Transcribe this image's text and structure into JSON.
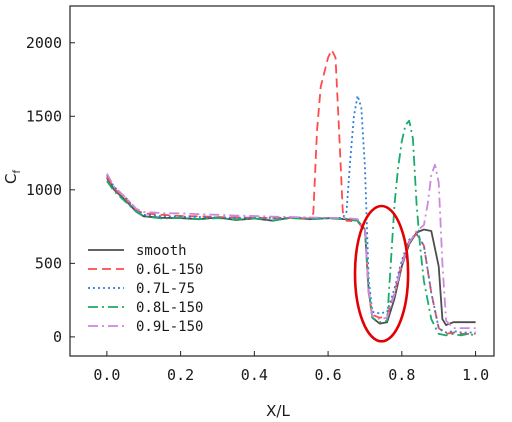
{
  "chart_data": {
    "type": "line",
    "xlabel": "X/L",
    "ylabel": "C",
    "ylabel_subscript": "f",
    "xlim": [
      -0.1,
      1.05
    ],
    "ylim": [
      -130,
      2250
    ],
    "x_ticks": [
      0.0,
      0.2,
      0.4,
      0.6,
      0.8,
      1.0
    ],
    "x_tick_labels": [
      "0.0",
      "0.2",
      "0.4",
      "0.6",
      "0.8",
      "1.0"
    ],
    "y_ticks": [
      0,
      500,
      1000,
      1500,
      2000
    ],
    "y_tick_labels": [
      "0",
      "500",
      "1000",
      "1500",
      "2000"
    ],
    "grid": false,
    "legend_position": "bottom-left",
    "series": [
      {
        "name": "smooth",
        "color": "#4d4d4d",
        "dash": "solid",
        "points": [
          [
            0.0,
            1080
          ],
          [
            0.02,
            1000
          ],
          [
            0.05,
            930
          ],
          [
            0.08,
            850
          ],
          [
            0.1,
            820
          ],
          [
            0.15,
            810
          ],
          [
            0.2,
            808
          ],
          [
            0.25,
            800
          ],
          [
            0.3,
            812
          ],
          [
            0.35,
            795
          ],
          [
            0.4,
            805
          ],
          [
            0.45,
            790
          ],
          [
            0.5,
            812
          ],
          [
            0.55,
            800
          ],
          [
            0.6,
            808
          ],
          [
            0.65,
            800
          ],
          [
            0.68,
            790
          ],
          [
            0.7,
            730
          ],
          [
            0.71,
            320
          ],
          [
            0.72,
            130
          ],
          [
            0.74,
            90
          ],
          [
            0.76,
            100
          ],
          [
            0.78,
            260
          ],
          [
            0.8,
            480
          ],
          [
            0.82,
            630
          ],
          [
            0.84,
            710
          ],
          [
            0.86,
            730
          ],
          [
            0.88,
            720
          ],
          [
            0.9,
            480
          ],
          [
            0.91,
            120
          ],
          [
            0.92,
            80
          ],
          [
            0.94,
            100
          ],
          [
            0.96,
            100
          ],
          [
            0.98,
            100
          ],
          [
            1.0,
            100
          ]
        ]
      },
      {
        "name": "0.6L-150",
        "color": "#ff4b4b",
        "dash": "9,5",
        "points": [
          [
            0.0,
            1090
          ],
          [
            0.02,
            1010
          ],
          [
            0.05,
            940
          ],
          [
            0.08,
            860
          ],
          [
            0.1,
            840
          ],
          [
            0.15,
            830
          ],
          [
            0.2,
            822
          ],
          [
            0.25,
            820
          ],
          [
            0.3,
            815
          ],
          [
            0.35,
            812
          ],
          [
            0.4,
            810
          ],
          [
            0.45,
            808
          ],
          [
            0.5,
            810
          ],
          [
            0.55,
            805
          ],
          [
            0.56,
            840
          ],
          [
            0.57,
            1400
          ],
          [
            0.58,
            1700
          ],
          [
            0.6,
            1900
          ],
          [
            0.61,
            1950
          ],
          [
            0.62,
            1900
          ],
          [
            0.63,
            1400
          ],
          [
            0.64,
            850
          ],
          [
            0.65,
            790
          ],
          [
            0.68,
            785
          ],
          [
            0.7,
            720
          ],
          [
            0.71,
            300
          ],
          [
            0.72,
            150
          ],
          [
            0.74,
            130
          ],
          [
            0.76,
            140
          ],
          [
            0.78,
            300
          ],
          [
            0.8,
            500
          ],
          [
            0.82,
            650
          ],
          [
            0.84,
            700
          ],
          [
            0.86,
            620
          ],
          [
            0.88,
            300
          ],
          [
            0.9,
            60
          ],
          [
            0.92,
            20
          ],
          [
            0.94,
            30
          ],
          [
            0.96,
            20
          ],
          [
            0.98,
            20
          ],
          [
            1.0,
            20
          ]
        ]
      },
      {
        "name": "0.7L-75",
        "color": "#2f7fd9",
        "dash": "2,3",
        "points": [
          [
            0.0,
            1100
          ],
          [
            0.02,
            1020
          ],
          [
            0.05,
            950
          ],
          [
            0.08,
            860
          ],
          [
            0.1,
            830
          ],
          [
            0.15,
            820
          ],
          [
            0.2,
            818
          ],
          [
            0.25,
            815
          ],
          [
            0.3,
            812
          ],
          [
            0.35,
            810
          ],
          [
            0.4,
            812
          ],
          [
            0.45,
            808
          ],
          [
            0.5,
            812
          ],
          [
            0.55,
            810
          ],
          [
            0.6,
            808
          ],
          [
            0.64,
            810
          ],
          [
            0.65,
            850
          ],
          [
            0.66,
            1200
          ],
          [
            0.67,
            1500
          ],
          [
            0.68,
            1640
          ],
          [
            0.69,
            1560
          ],
          [
            0.7,
            1150
          ],
          [
            0.71,
            400
          ],
          [
            0.72,
            170
          ],
          [
            0.74,
            160
          ],
          [
            0.76,
            170
          ],
          [
            0.78,
            330
          ],
          [
            0.8,
            520
          ],
          [
            0.82,
            660
          ],
          [
            0.84,
            700
          ],
          [
            0.86,
            620
          ],
          [
            0.88,
            300
          ],
          [
            0.9,
            60
          ],
          [
            0.92,
            30
          ],
          [
            0.94,
            40
          ],
          [
            0.96,
            30
          ],
          [
            0.98,
            30
          ],
          [
            1.0,
            30
          ]
        ]
      },
      {
        "name": "0.8L-150",
        "color": "#1aab6a",
        "dash": "10,4,2,4",
        "points": [
          [
            0.0,
            1060
          ],
          [
            0.02,
            990
          ],
          [
            0.05,
            920
          ],
          [
            0.08,
            850
          ],
          [
            0.1,
            820
          ],
          [
            0.15,
            805
          ],
          [
            0.2,
            810
          ],
          [
            0.25,
            800
          ],
          [
            0.3,
            808
          ],
          [
            0.35,
            798
          ],
          [
            0.4,
            806
          ],
          [
            0.45,
            792
          ],
          [
            0.5,
            808
          ],
          [
            0.55,
            800
          ],
          [
            0.6,
            805
          ],
          [
            0.65,
            800
          ],
          [
            0.68,
            790
          ],
          [
            0.7,
            720
          ],
          [
            0.71,
            330
          ],
          [
            0.72,
            130
          ],
          [
            0.74,
            100
          ],
          [
            0.76,
            110
          ],
          [
            0.77,
            500
          ],
          [
            0.78,
            900
          ],
          [
            0.79,
            1150
          ],
          [
            0.8,
            1330
          ],
          [
            0.81,
            1440
          ],
          [
            0.82,
            1470
          ],
          [
            0.83,
            1350
          ],
          [
            0.84,
            900
          ],
          [
            0.85,
            600
          ],
          [
            0.86,
            380
          ],
          [
            0.88,
            120
          ],
          [
            0.9,
            20
          ],
          [
            0.92,
            10
          ],
          [
            0.94,
            20
          ],
          [
            0.96,
            10
          ],
          [
            0.98,
            20
          ],
          [
            1.0,
            10
          ]
        ]
      },
      {
        "name": "0.9L-150",
        "color": "#cc88dd",
        "dash": "10,4,2,4",
        "points": [
          [
            0.0,
            1110
          ],
          [
            0.02,
            1020
          ],
          [
            0.05,
            950
          ],
          [
            0.08,
            870
          ],
          [
            0.1,
            850
          ],
          [
            0.15,
            842
          ],
          [
            0.2,
            840
          ],
          [
            0.25,
            835
          ],
          [
            0.3,
            830
          ],
          [
            0.35,
            825
          ],
          [
            0.4,
            822
          ],
          [
            0.45,
            818
          ],
          [
            0.5,
            815
          ],
          [
            0.55,
            812
          ],
          [
            0.6,
            810
          ],
          [
            0.65,
            808
          ],
          [
            0.68,
            800
          ],
          [
            0.7,
            730
          ],
          [
            0.71,
            320
          ],
          [
            0.72,
            140
          ],
          [
            0.74,
            120
          ],
          [
            0.76,
            130
          ],
          [
            0.78,
            290
          ],
          [
            0.8,
            490
          ],
          [
            0.82,
            640
          ],
          [
            0.84,
            720
          ],
          [
            0.86,
            760
          ],
          [
            0.87,
            900
          ],
          [
            0.88,
            1100
          ],
          [
            0.89,
            1170
          ],
          [
            0.9,
            1050
          ],
          [
            0.91,
            500
          ],
          [
            0.92,
            110
          ],
          [
            0.94,
            60
          ],
          [
            0.96,
            60
          ],
          [
            0.98,
            60
          ],
          [
            1.0,
            60
          ]
        ]
      }
    ],
    "annotations": [
      {
        "type": "ellipse",
        "color": "#e30000",
        "cx": 0.745,
        "cy": 430,
        "rx": 0.072,
        "ry": 460
      }
    ]
  }
}
